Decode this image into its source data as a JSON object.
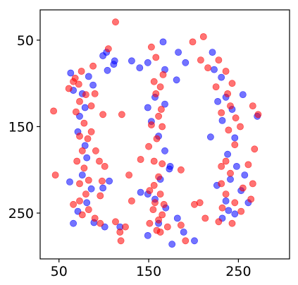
{
  "chart_data": {
    "type": "scatter",
    "title": "",
    "xlabel": "",
    "ylabel": "",
    "xlim": [
      29,
      307
    ],
    "ylim": [
      303,
      15
    ],
    "y_inverted": true,
    "grid": false,
    "legend": "none",
    "x_ticks": [
      50,
      150,
      250
    ],
    "y_ticks": [
      50,
      150,
      250
    ],
    "x_tick_labels": [
      "50",
      "150",
      "250"
    ],
    "y_tick_labels": [
      "50",
      "150",
      "250"
    ],
    "marker_alpha": 0.55,
    "series": [
      {
        "color": "#0000ff",
        "points": [
          [
            103,
            64
          ],
          [
            99,
            68
          ],
          [
            112,
            74
          ],
          [
            104,
            85
          ],
          [
            111,
            78
          ],
          [
            83,
            92
          ],
          [
            88,
            102
          ],
          [
            76,
            112
          ],
          [
            79,
            128
          ],
          [
            73,
            138
          ],
          [
            71,
            156
          ],
          [
            79,
            172
          ],
          [
            81,
            186
          ],
          [
            76,
            206
          ],
          [
            62,
            214
          ],
          [
            86,
            222
          ],
          [
            81,
            238
          ],
          [
            71,
            248
          ],
          [
            89,
            261
          ],
          [
            66,
            262
          ],
          [
            101,
            266
          ],
          [
            118,
            266
          ],
          [
            106,
            213
          ],
          [
            149,
            76
          ],
          [
            166,
            52
          ],
          [
            183,
            64
          ],
          [
            191,
            76
          ],
          [
            168,
            84
          ],
          [
            149,
            128
          ],
          [
            157,
            116
          ],
          [
            168,
            124
          ],
          [
            181,
            96
          ],
          [
            153,
            144
          ],
          [
            161,
            161
          ],
          [
            168,
            178
          ],
          [
            174,
            196
          ],
          [
            163,
            211
          ],
          [
            149,
            228
          ],
          [
            157,
            234
          ],
          [
            169,
            244
          ],
          [
            182,
            256
          ],
          [
            161,
            262
          ],
          [
            149,
            276
          ],
          [
            189,
            272
          ],
          [
            176,
            286
          ],
          [
            201,
            282
          ],
          [
            221,
            64
          ],
          [
            223,
            84
          ],
          [
            231,
            93
          ],
          [
            236,
            116
          ],
          [
            243,
            130
          ],
          [
            232,
            143
          ],
          [
            246,
            163
          ],
          [
            238,
            182
          ],
          [
            248,
            196
          ],
          [
            241,
            211
          ],
          [
            226,
            218
          ],
          [
            253,
            224
          ],
          [
            236,
            236
          ],
          [
            246,
            251
          ],
          [
            232,
            256
          ],
          [
            261,
            238
          ],
          [
            257,
            206
          ],
          [
            271,
            138
          ],
          [
            255,
            113
          ],
          [
            131,
            74
          ],
          [
            140,
            82
          ],
          [
            141,
            226
          ],
          [
            227,
            121
          ],
          [
            219,
            162
          ],
          [
            173,
            199
          ],
          [
            99,
            221
          ],
          [
            63,
            88
          ],
          [
            66,
            108
          ],
          [
            239,
            247
          ]
        ]
      },
      {
        "color": "#ff0000",
        "points": [
          [
            113,
            29
          ],
          [
            105,
            60
          ],
          [
            211,
            46
          ],
          [
            208,
            73
          ],
          [
            216,
            82
          ],
          [
            228,
            73
          ],
          [
            236,
            86
          ],
          [
            243,
            100
          ],
          [
            238,
            112
          ],
          [
            241,
            126
          ],
          [
            247,
            140
          ],
          [
            252,
            150
          ],
          [
            246,
            171
          ],
          [
            236,
            190
          ],
          [
            241,
            204
          ],
          [
            231,
            216
          ],
          [
            236,
            228
          ],
          [
            246,
            238
          ],
          [
            253,
            248
          ],
          [
            266,
            126
          ],
          [
            272,
            136
          ],
          [
            268,
            176
          ],
          [
            266,
            216
          ],
          [
            264,
            234
          ],
          [
            68,
            94
          ],
          [
            61,
            106
          ],
          [
            72,
            101
          ],
          [
            80,
            113
          ],
          [
            73,
            121
          ],
          [
            69,
            133
          ],
          [
            78,
            146
          ],
          [
            73,
            161
          ],
          [
            82,
            164
          ],
          [
            76,
            178
          ],
          [
            70,
            190
          ],
          [
            78,
            198
          ],
          [
            83,
            212
          ],
          [
            73,
            216
          ],
          [
            80,
            228
          ],
          [
            73,
            236
          ],
          [
            66,
            240
          ],
          [
            83,
            246
          ],
          [
            76,
            252
          ],
          [
            90,
            256
          ],
          [
            96,
            262
          ],
          [
            113,
            260
          ],
          [
            118,
            272
          ],
          [
            124,
            266
          ],
          [
            119,
            282
          ],
          [
            44,
            132
          ],
          [
            46,
            206
          ],
          [
            153,
            58
          ],
          [
            158,
            70
          ],
          [
            166,
            90
          ],
          [
            156,
            98
          ],
          [
            163,
            104
          ],
          [
            158,
            112
          ],
          [
            164,
            130
          ],
          [
            161,
            138
          ],
          [
            153,
            148
          ],
          [
            165,
            150
          ],
          [
            159,
            164
          ],
          [
            150,
            173
          ],
          [
            141,
            188
          ],
          [
            156,
            190
          ],
          [
            165,
            193
          ],
          [
            161,
            208
          ],
          [
            156,
            218
          ],
          [
            151,
            224
          ],
          [
            163,
            228
          ],
          [
            157,
            238
          ],
          [
            167,
            240
          ],
          [
            155,
            246
          ],
          [
            165,
            252
          ],
          [
            161,
            258
          ],
          [
            151,
            262
          ],
          [
            171,
            266
          ],
          [
            159,
            270
          ],
          [
            163,
            272
          ],
          [
            186,
            264
          ],
          [
            191,
            282
          ],
          [
            199,
            52
          ],
          [
            207,
            238
          ],
          [
            232,
            244
          ],
          [
            228,
            260
          ],
          [
            243,
            262
          ],
          [
            255,
            221
          ],
          [
            261,
            194
          ],
          [
            231,
            196
          ],
          [
            239,
            154
          ],
          [
            231,
            134
          ],
          [
            225,
            104
          ],
          [
            99,
            136
          ],
          [
            86,
            156
          ],
          [
            91,
            178
          ],
          [
            95,
            190
          ],
          [
            101,
            196
          ],
          [
            98,
            213
          ],
          [
            96,
            230
          ],
          [
            90,
            112
          ],
          [
            86,
            126
          ],
          [
            88,
            80
          ],
          [
            75,
            86
          ],
          [
            66,
            98
          ],
          [
            131,
            236
          ],
          [
            128,
            206
          ],
          [
            186,
            200
          ],
          [
            201,
            240
          ],
          [
            213,
            256
          ],
          [
            120,
            136
          ]
        ]
      }
    ]
  }
}
